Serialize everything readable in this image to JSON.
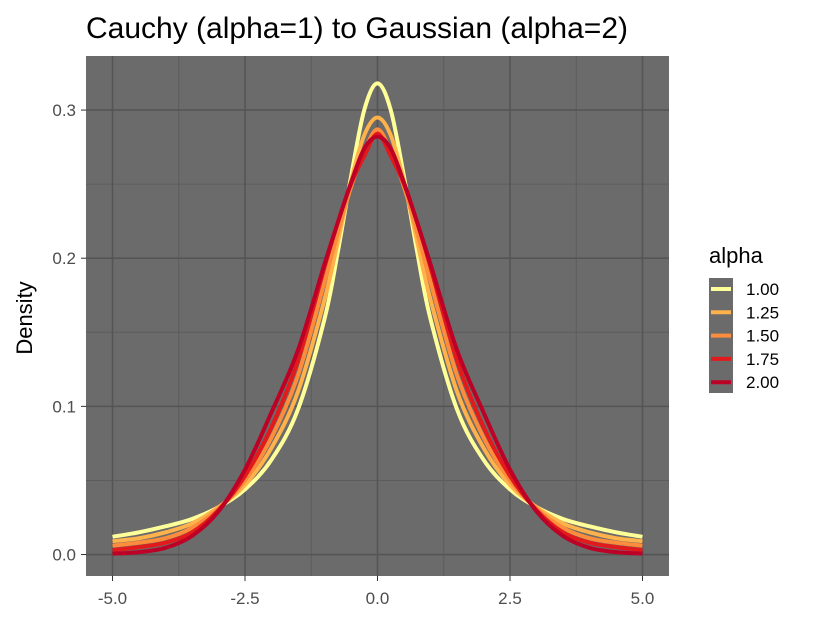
{
  "chart_data": {
    "type": "line",
    "title": "Cauchy (alpha=1) to Gaussian (alpha=2)",
    "xlabel": "",
    "ylabel": "Density",
    "xlim": [
      -5.0,
      5.0
    ],
    "ylim": [
      0.0,
      0.32
    ],
    "x_ticks": [
      "-5.0",
      "-2.5",
      "0.0",
      "2.5",
      "5.0"
    ],
    "y_ticks": [
      "0.0",
      "0.1",
      "0.2",
      "0.3"
    ],
    "panel_background": "#6b6b6b",
    "grid": true,
    "legend": {
      "title": "alpha",
      "position": "right"
    },
    "x": [
      -5,
      -4.5,
      -4,
      -3.5,
      -3,
      -2.5,
      -2,
      -1.5,
      -1,
      -0.75,
      -0.5,
      -0.25,
      0,
      0.25,
      0.5,
      0.75,
      1,
      1.5,
      2,
      2.5,
      3,
      3.5,
      4,
      4.5,
      5
    ],
    "series": [
      {
        "name": "1.00",
        "color": "#ffff99",
        "values": [
          0.012,
          0.015,
          0.019,
          0.024,
          0.032,
          0.044,
          0.064,
          0.098,
          0.159,
          0.204,
          0.255,
          0.3,
          0.318,
          0.3,
          0.255,
          0.204,
          0.159,
          0.098,
          0.064,
          0.044,
          0.032,
          0.024,
          0.019,
          0.015,
          0.012
        ]
      },
      {
        "name": "1.25",
        "color": "#feb24c",
        "values": [
          0.009,
          0.011,
          0.015,
          0.021,
          0.032,
          0.047,
          0.072,
          0.11,
          0.172,
          0.211,
          0.252,
          0.283,
          0.295,
          0.283,
          0.252,
          0.211,
          0.172,
          0.11,
          0.072,
          0.047,
          0.032,
          0.021,
          0.015,
          0.011,
          0.009
        ]
      },
      {
        "name": "1.50",
        "color": "#fd8d3c",
        "values": [
          0.006,
          0.008,
          0.011,
          0.018,
          0.031,
          0.05,
          0.079,
          0.121,
          0.184,
          0.217,
          0.248,
          0.272,
          0.287,
          0.272,
          0.248,
          0.217,
          0.184,
          0.121,
          0.079,
          0.05,
          0.031,
          0.018,
          0.011,
          0.008,
          0.006
        ]
      },
      {
        "name": "1.75",
        "color": "#e31a1c",
        "values": [
          0.003,
          0.005,
          0.008,
          0.015,
          0.03,
          0.053,
          0.086,
          0.131,
          0.194,
          0.224,
          0.25,
          0.269,
          0.284,
          0.269,
          0.25,
          0.224,
          0.194,
          0.131,
          0.086,
          0.053,
          0.03,
          0.015,
          0.008,
          0.005,
          0.003
        ]
      },
      {
        "name": "2.00",
        "color": "#bd0026",
        "values": [
          0.0006,
          0.0016,
          0.0045,
          0.0125,
          0.0291,
          0.0573,
          0.096,
          0.138,
          0.196,
          0.224,
          0.251,
          0.274,
          0.2821,
          0.274,
          0.251,
          0.224,
          0.196,
          0.138,
          0.096,
          0.0573,
          0.0291,
          0.0125,
          0.0045,
          0.0016,
          0.0006
        ]
      }
    ]
  }
}
